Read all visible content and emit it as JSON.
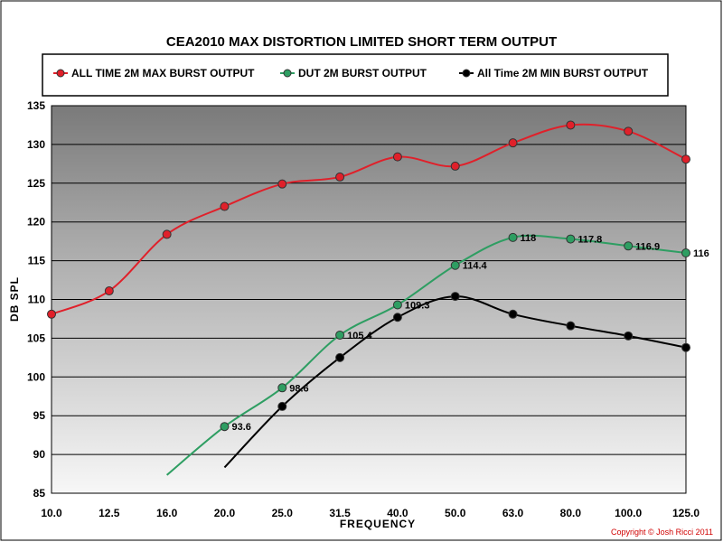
{
  "chart_data": {
    "type": "line",
    "title": "CEA2010 MAX DISTORTION LIMITED SHORT TERM OUTPUT",
    "xlabel": "FREQUENCY",
    "ylabel": "DB SPL",
    "categories": [
      "10.0",
      "12.5",
      "16.0",
      "20.0",
      "25.0",
      "31.5",
      "40.0",
      "50.0",
      "63.0",
      "80.0",
      "100.0",
      "125.0"
    ],
    "ylim": [
      85,
      135
    ],
    "yticks": [
      "85",
      "90",
      "95",
      "100",
      "105",
      "110",
      "115",
      "120",
      "125",
      "130",
      "135"
    ],
    "grid": true,
    "legend_position": "top",
    "series": [
      {
        "name": "ALL TIME 2M MAX BURST OUTPUT",
        "color": "#e0202a",
        "values": [
          108.1,
          111.1,
          118.4,
          122.0,
          124.9,
          125.8,
          128.4,
          127.2,
          130.2,
          132.5,
          131.7,
          128.1
        ],
        "labels": []
      },
      {
        "name": "DUT 2M BURST OUTPUT",
        "color": "#2e9e62",
        "values": [
          null,
          null,
          null,
          93.6,
          98.6,
          105.4,
          109.3,
          114.4,
          118.0,
          117.8,
          116.9,
          116.0
        ],
        "labels": [
          "",
          "",
          "",
          "93.6",
          "98.6",
          "105.4",
          "109.3",
          "114.4",
          "118",
          "117.8",
          "116.9",
          "116"
        ]
      },
      {
        "name": "All Time 2M MIN BURST OUTPUT",
        "color": "#000000",
        "values": [
          null,
          null,
          null,
          null,
          96.2,
          102.5,
          107.7,
          110.4,
          108.1,
          106.6,
          105.3,
          103.8
        ],
        "labels": []
      }
    ],
    "copyright": "Copyright © Josh Ricci 2011"
  }
}
